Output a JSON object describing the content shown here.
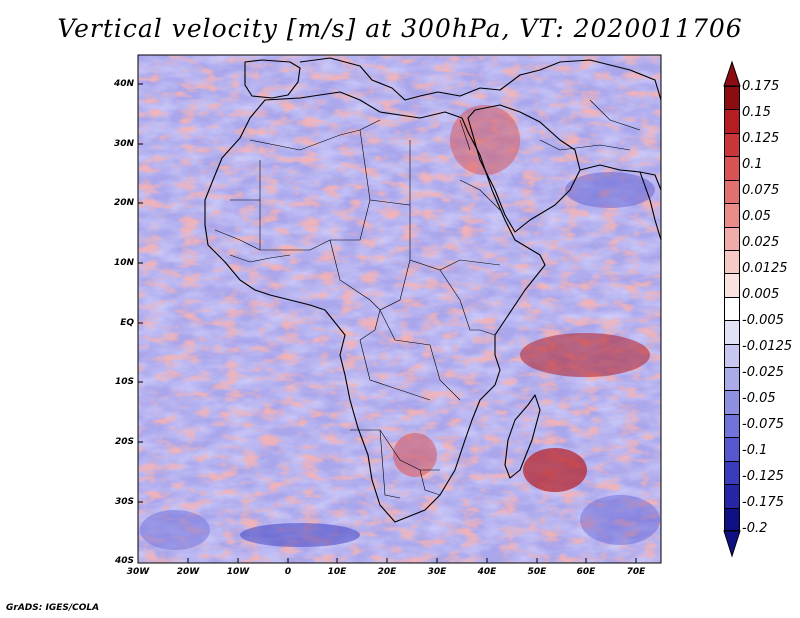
{
  "title": "Vertical velocity [m/s] at 300hPa, VT: 2020011706",
  "credit": "GrADS: IGES/COLA",
  "map": {
    "lat_ticks": [
      "40N",
      "30N",
      "20N",
      "10N",
      "EQ",
      "10S",
      "20S",
      "30S",
      "40S"
    ],
    "lon_ticks": [
      "30W",
      "20W",
      "10W",
      "0",
      "10E",
      "20E",
      "30E",
      "40E",
      "50E",
      "60E",
      "70E"
    ],
    "lat_range": [
      -40,
      45
    ],
    "lon_range": [
      -30,
      75
    ]
  },
  "colorbar": {
    "labels": [
      "0.175",
      "0.15",
      "0.125",
      "0.1",
      "0.075",
      "0.05",
      "0.025",
      "0.0125",
      "0.005",
      "-0.005",
      "-0.0125",
      "-0.025",
      "-0.05",
      "-0.075",
      "-0.1",
      "-0.125",
      "-0.175",
      "-0.2"
    ],
    "colors": [
      "#8b0d12",
      "#b51d22",
      "#c9363a",
      "#d85355",
      "#e27070",
      "#ea8c8a",
      "#f1aba8",
      "#f7c9c6",
      "#fbe2e0",
      "#ffffff",
      "#e2e2f7",
      "#c7c7f0",
      "#ababe9",
      "#8f8fe2",
      "#7272db",
      "#5656cf",
      "#3b3bbd",
      "#2525a5",
      "#101085"
    ],
    "extend_high_color": "#8b0d12",
    "extend_low_color": "#101085"
  }
}
